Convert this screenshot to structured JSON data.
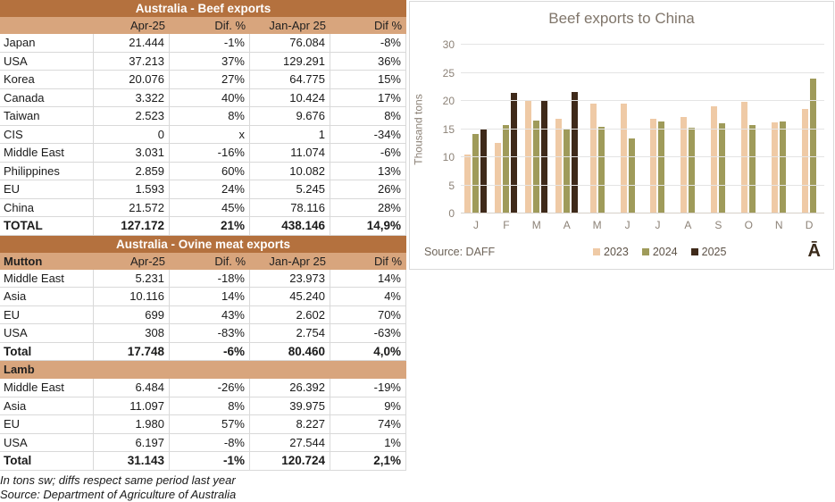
{
  "beef_table": {
    "title": "Australia - Beef exports",
    "columns": [
      "",
      "Apr-25",
      "Dif. %",
      "Jan-Apr 25",
      "Dif %"
    ],
    "rows": [
      [
        "Japan",
        "21.444",
        "-1%",
        "76.084",
        "-8%"
      ],
      [
        "USA",
        "37.213",
        "37%",
        "129.291",
        "36%"
      ],
      [
        "Korea",
        "20.076",
        "27%",
        "64.775",
        "15%"
      ],
      [
        "Canada",
        "3.322",
        "40%",
        "10.424",
        "17%"
      ],
      [
        "Taiwan",
        "2.523",
        "8%",
        "9.676",
        "8%"
      ],
      [
        "CIS",
        "0",
        "x",
        "1",
        "-34%"
      ],
      [
        "Middle East",
        "3.031",
        "-16%",
        "11.074",
        "-6%"
      ],
      [
        "Philippines",
        "2.859",
        "60%",
        "10.082",
        "13%"
      ],
      [
        "EU",
        "1.593",
        "24%",
        "5.245",
        "26%"
      ],
      [
        "China",
        "21.572",
        "45%",
        "78.116",
        "28%"
      ]
    ],
    "total_rows": [
      [
        "TOTAL",
        "127.172",
        "21%",
        "438.146",
        "14,9%"
      ]
    ]
  },
  "ovine_table": {
    "title": "Australia - Ovine meat exports",
    "mutton_header": [
      "Mutton",
      "Apr-25",
      "Dif. %",
      "Jan-Apr 25",
      "Dif %"
    ],
    "mutton_rows": [
      [
        "Middle East",
        "5.231",
        "-18%",
        "23.973",
        "14%"
      ],
      [
        "Asia",
        "10.116",
        "14%",
        "45.240",
        "4%"
      ],
      [
        "EU",
        "699",
        "43%",
        "2.602",
        "70%"
      ],
      [
        "USA",
        "308",
        "-83%",
        "2.754",
        "-63%"
      ]
    ],
    "mutton_total_rows": [
      [
        "Total",
        "17.748",
        "-6%",
        "80.460",
        "4,0%"
      ]
    ],
    "lamb_label": "Lamb",
    "lamb_rows": [
      [
        "Middle East",
        "6.484",
        "-26%",
        "26.392",
        "-19%"
      ],
      [
        "Asia",
        "11.097",
        "8%",
        "39.975",
        "9%"
      ],
      [
        "EU",
        "1.980",
        "57%",
        "8.227",
        "74%"
      ],
      [
        "USA",
        "6.197",
        "-8%",
        "27.544",
        "1%"
      ]
    ],
    "lamb_total_rows": [
      [
        "Total",
        "31.143",
        "-1%",
        "120.724",
        "2,1%"
      ]
    ]
  },
  "footnotes": {
    "line1": "In tons sw; diffs respect same period last year",
    "line2": "Source: Department of Agriculture of Australia"
  },
  "chart_footer": {
    "source": "Source: DAFF",
    "logo": "Ā"
  },
  "chart_data": {
    "type": "bar",
    "title": "Beef exports to China",
    "ylabel": "Thousand tons",
    "ylim": [
      0,
      30
    ],
    "yticks": [
      0,
      5,
      10,
      15,
      20,
      25,
      30
    ],
    "grid": true,
    "legend_position": "bottom",
    "categories": [
      "J",
      "F",
      "M",
      "A",
      "M",
      "J",
      "J",
      "A",
      "S",
      "O",
      "N",
      "D"
    ],
    "series": [
      {
        "name": "2023",
        "color": "#efcaa6",
        "values": [
          10.5,
          12.6,
          20.0,
          16.8,
          19.6,
          19.6,
          16.9,
          17.2,
          19.1,
          19.8,
          16.2,
          18.5
        ]
      },
      {
        "name": "2024",
        "color": "#9f9b5a",
        "values": [
          14.1,
          15.7,
          16.5,
          14.9,
          15.4,
          13.3,
          16.4,
          15.2,
          16.1,
          15.7,
          16.3,
          23.9
        ]
      },
      {
        "name": "2025",
        "color": "#3f2a1a",
        "values": [
          14.9,
          21.4,
          20.2,
          21.6,
          null,
          null,
          null,
          null,
          null,
          null,
          null,
          null
        ]
      }
    ]
  }
}
